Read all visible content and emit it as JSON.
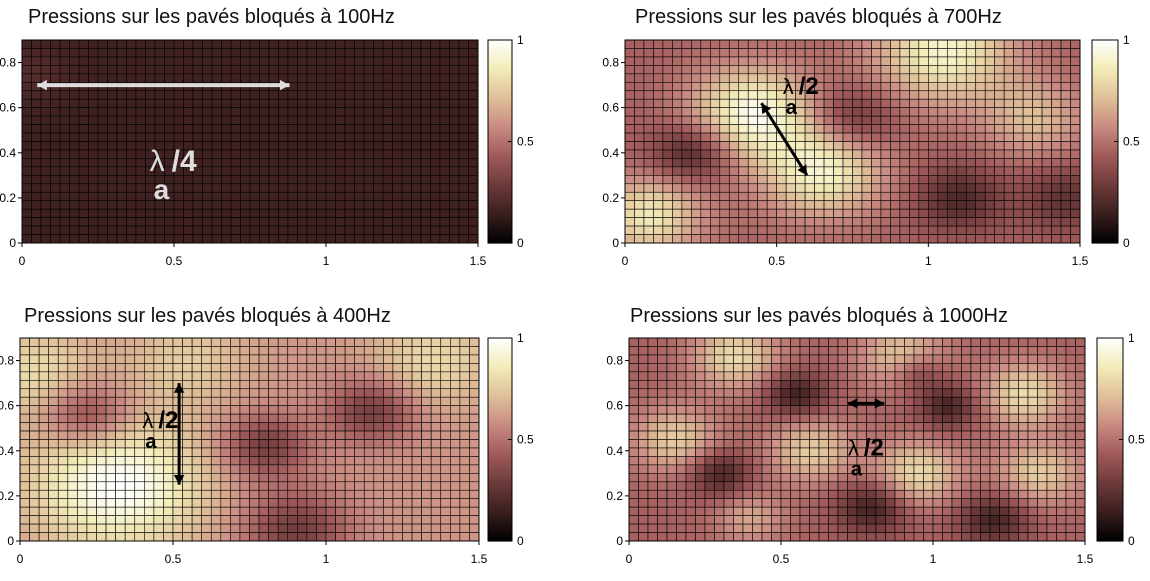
{
  "colors": {
    "colormap": [
      "#000000",
      "#3a1e1e",
      "#6e3a3a",
      "#a05a5a",
      "#c98a82",
      "#e0c099",
      "#f2ecb8",
      "#ffffff"
    ],
    "grid_line": "#000000",
    "arrow_light": "#dddddd",
    "arrow_dark": "#000000"
  },
  "chart_data": [
    {
      "type": "heatmap",
      "title": "Pressions sur les pavés bloqués à 100Hz",
      "x_ticks": [
        "0",
        "0.5",
        "1",
        "1.5"
      ],
      "y_ticks": [
        "0",
        "0.2",
        "0.4",
        "0.6",
        "0.8"
      ],
      "xlim": [
        0,
        1.5
      ],
      "ylim": [
        0,
        0.9
      ],
      "colorbar_ticks": [
        "0",
        "0.5",
        "1"
      ],
      "clim": [
        0,
        1
      ],
      "grid": {
        "cols": 48,
        "rows": 24
      },
      "field": {
        "base": 0.16,
        "ranges": [
          0,
          0.2
        ],
        "blobs": [
          {
            "x": 0.05,
            "y": 0.75,
            "amp": 0.06,
            "r": 0.08
          }
        ]
      },
      "annotation": {
        "text_main": "λ",
        "text_sub": "a",
        "text_suffix": "/4",
        "arrow": {
          "x1": 0.05,
          "y1": 0.7,
          "x2": 0.88,
          "y2": 0.7,
          "double": true,
          "color": "light"
        },
        "label_at": {
          "x": 0.42,
          "y": 0.32
        },
        "label_color": "light"
      }
    },
    {
      "type": "heatmap",
      "title": "Pressions sur les pavés bloqués à 700Hz",
      "x_ticks": [
        "0",
        "0.5",
        "1",
        "1.5"
      ],
      "y_ticks": [
        "0",
        "0.2",
        "0.4",
        "0.6",
        "0.8"
      ],
      "xlim": [
        0,
        1.5
      ],
      "ylim": [
        0,
        0.9
      ],
      "colorbar_ticks": [
        "0",
        "0.5",
        "1"
      ],
      "clim": [
        0,
        1
      ],
      "grid": {
        "cols": 48,
        "rows": 24
      },
      "field": {
        "base": 0.45,
        "blobs": [
          {
            "x": 0.42,
            "y": 0.58,
            "amp": 0.5,
            "r": 0.14
          },
          {
            "x": 0.65,
            "y": 0.32,
            "amp": 0.45,
            "r": 0.14
          },
          {
            "x": 1.05,
            "y": 0.85,
            "amp": 0.45,
            "r": 0.16
          },
          {
            "x": 0.08,
            "y": 0.12,
            "amp": 0.4,
            "r": 0.12
          },
          {
            "x": 1.35,
            "y": 0.55,
            "amp": 0.25,
            "r": 0.12
          },
          {
            "x": 0.22,
            "y": 0.4,
            "amp": -0.28,
            "r": 0.09
          },
          {
            "x": 0.75,
            "y": 0.55,
            "amp": -0.22,
            "r": 0.1
          },
          {
            "x": 1.1,
            "y": 0.2,
            "amp": -0.25,
            "r": 0.1
          },
          {
            "x": 1.45,
            "y": 0.2,
            "amp": -0.2,
            "r": 0.1
          }
        ]
      },
      "annotation": {
        "text_main": "λ",
        "text_sub": "a",
        "text_suffix": "/2",
        "arrow": {
          "x1": 0.45,
          "y1": 0.62,
          "x2": 0.6,
          "y2": 0.3,
          "double": true,
          "color": "dark"
        },
        "label_at": {
          "x": 0.52,
          "y": 0.66
        },
        "label_color": "dark"
      }
    },
    {
      "type": "heatmap",
      "title": "Pressions sur les pavés bloqués à 400Hz",
      "x_ticks": [
        "0",
        "0.5",
        "1",
        "1.5"
      ],
      "y_ticks": [
        "0",
        "0.2",
        "0.4",
        "0.6",
        "0.8"
      ],
      "xlim": [
        0,
        1.5
      ],
      "ylim": [
        0,
        0.9
      ],
      "colorbar_ticks": [
        "0",
        "0.5",
        "1"
      ],
      "clim": [
        0,
        1
      ],
      "grid": {
        "cols": 48,
        "rows": 24
      },
      "field": {
        "base": 0.6,
        "blobs": [
          {
            "x": 0.32,
            "y": 0.25,
            "amp": 0.4,
            "r": 0.2
          },
          {
            "x": 0.05,
            "y": 0.75,
            "amp": 0.2,
            "r": 0.14
          },
          {
            "x": 0.55,
            "y": 0.8,
            "amp": 0.15,
            "r": 0.14
          },
          {
            "x": 1.35,
            "y": 0.8,
            "amp": 0.2,
            "r": 0.14
          },
          {
            "x": 0.22,
            "y": 0.56,
            "amp": -0.3,
            "r": 0.1
          },
          {
            "x": 0.8,
            "y": 0.42,
            "amp": -0.3,
            "r": 0.1
          },
          {
            "x": 1.15,
            "y": 0.58,
            "amp": -0.3,
            "r": 0.1
          },
          {
            "x": 0.9,
            "y": 0.05,
            "amp": -0.3,
            "r": 0.12
          }
        ]
      },
      "annotation": {
        "text_main": "λ",
        "text_sub": "a",
        "text_suffix": "/2",
        "arrow": {
          "x1": 0.52,
          "y1": 0.7,
          "x2": 0.52,
          "y2": 0.25,
          "double": true,
          "color": "dark"
        },
        "label_at": {
          "x": 0.4,
          "y": 0.5
        },
        "label_color": "dark"
      }
    },
    {
      "type": "heatmap",
      "title": "Pressions sur les pavés bloqués à 1000Hz",
      "x_ticks": [
        "0",
        "0.5",
        "1",
        "1.5"
      ],
      "y_ticks": [
        "0",
        "0.2",
        "0.4",
        "0.6",
        "0.8"
      ],
      "xlim": [
        0,
        1.5
      ],
      "ylim": [
        0,
        0.9
      ],
      "colorbar_ticks": [
        "0",
        "0.5",
        "1"
      ],
      "clim": [
        0,
        1
      ],
      "grid": {
        "cols": 48,
        "rows": 24
      },
      "field": {
        "base": 0.45,
        "blobs": [
          {
            "x": 0.35,
            "y": 0.82,
            "amp": 0.35,
            "r": 0.1
          },
          {
            "x": 0.9,
            "y": 0.82,
            "amp": 0.3,
            "r": 0.1
          },
          {
            "x": 1.3,
            "y": 0.65,
            "amp": 0.35,
            "r": 0.1
          },
          {
            "x": 0.15,
            "y": 0.45,
            "amp": 0.3,
            "r": 0.1
          },
          {
            "x": 0.6,
            "y": 0.4,
            "amp": 0.3,
            "r": 0.1
          },
          {
            "x": 0.95,
            "y": 0.3,
            "amp": 0.35,
            "r": 0.1
          },
          {
            "x": 1.35,
            "y": 0.3,
            "amp": 0.3,
            "r": 0.1
          },
          {
            "x": 0.4,
            "y": 0.1,
            "amp": 0.2,
            "r": 0.08
          },
          {
            "x": 0.55,
            "y": 0.65,
            "amp": -0.3,
            "r": 0.07
          },
          {
            "x": 1.05,
            "y": 0.6,
            "amp": -0.28,
            "r": 0.07
          },
          {
            "x": 0.3,
            "y": 0.3,
            "amp": -0.28,
            "r": 0.07
          },
          {
            "x": 0.8,
            "y": 0.15,
            "amp": -0.3,
            "r": 0.08
          },
          {
            "x": 1.2,
            "y": 0.1,
            "amp": -0.28,
            "r": 0.08
          },
          {
            "x": 0.95,
            "y": 0.75,
            "amp": -0.22,
            "r": 0.06
          }
        ]
      },
      "annotation": {
        "text_main": "λ",
        "text_sub": "a",
        "text_suffix": "/2",
        "arrow": {
          "x1": 0.72,
          "y1": 0.61,
          "x2": 0.84,
          "y2": 0.61,
          "double": true,
          "color": "dark"
        },
        "label_at": {
          "x": 0.72,
          "y": 0.38
        },
        "label_color": "dark"
      }
    }
  ]
}
